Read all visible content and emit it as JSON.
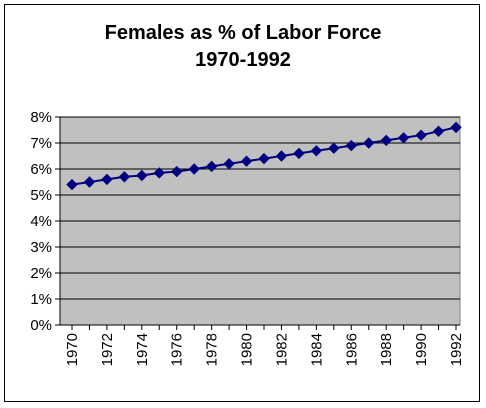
{
  "chart_data": {
    "type": "line",
    "title": "Females as % of Labor Force",
    "subtitle": "1970-1992",
    "xlabel": "",
    "ylabel": "",
    "x": [
      1970,
      1971,
      1972,
      1973,
      1974,
      1975,
      1976,
      1977,
      1978,
      1979,
      1980,
      1981,
      1982,
      1983,
      1984,
      1985,
      1986,
      1987,
      1988,
      1989,
      1990,
      1991,
      1992
    ],
    "x_tick_labels": [
      "1970",
      "1972",
      "1974",
      "1976",
      "1978",
      "1980",
      "1982",
      "1984",
      "1986",
      "1988",
      "1990",
      "1992"
    ],
    "ylim": [
      0,
      8
    ],
    "y_ticks": [
      0,
      1,
      2,
      3,
      4,
      5,
      6,
      7,
      8
    ],
    "y_tick_labels": [
      "0%",
      "1%",
      "2%",
      "3%",
      "4%",
      "5%",
      "6%",
      "7%",
      "8%"
    ],
    "series": [
      {
        "values": [
          5.4,
          5.5,
          5.6,
          5.7,
          5.75,
          5.85,
          5.9,
          6.0,
          6.1,
          6.2,
          6.3,
          6.4,
          6.5,
          6.6,
          6.7,
          6.8,
          6.9,
          7.0,
          7.1,
          7.2,
          7.3,
          7.45,
          7.6
        ]
      }
    ],
    "grid": true,
    "legend": "none",
    "colors": {
      "plot_background": "#c0c0c0",
      "line": "#000080",
      "marker": "#000080",
      "gridline": "#000000"
    }
  }
}
